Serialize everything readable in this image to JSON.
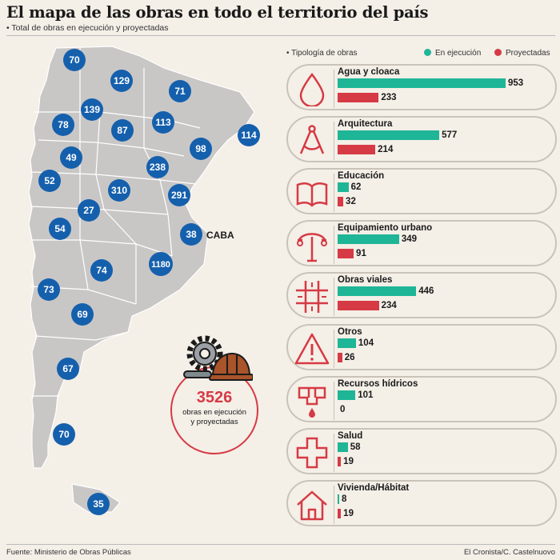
{
  "title": "El mapa de las obras en todo el territorio del país",
  "subtitle": "• Total de obras en ejecución y proyectadas",
  "colors": {
    "en_ejecucion": "#1fb597",
    "proyectadas": "#d63a44",
    "province_badge": "#1560ad",
    "land": "#c9c7c6"
  },
  "map": {
    "province_counts": [
      70,
      129,
      71,
      139,
      78,
      87,
      113,
      114,
      98,
      49,
      238,
      52,
      310,
      291,
      27,
      54,
      38,
      1180,
      74,
      73,
      69,
      67,
      70,
      35
    ],
    "caba_label": "CABA"
  },
  "total": {
    "value": "3526",
    "caption_line1": "obras en ejecución",
    "caption_line2": "y proyectadas",
    "icon": "gear-and-hardhat-icon"
  },
  "legend": {
    "title": "• Tipología de obras",
    "exec_label": "En ejecución",
    "proj_label": "Proyectadas"
  },
  "chart_data": {
    "type": "bar",
    "categories": [
      "Agua y cloaca",
      "Arquitectura",
      "Educación",
      "Equipamiento urbano",
      "Obras viales",
      "Otros",
      "Recursos hídricos",
      "Salud",
      "Vivienda/Hábitat"
    ],
    "series": [
      {
        "name": "En ejecución",
        "values": [
          953,
          577,
          62,
          349,
          446,
          104,
          101,
          58,
          8
        ]
      },
      {
        "name": "Proyectadas",
        "values": [
          233,
          214,
          32,
          91,
          234,
          26,
          0,
          19,
          19
        ]
      }
    ]
  },
  "category_icons": [
    "water-drop-icon",
    "compass-icon",
    "book-icon",
    "street-lamp-icon",
    "road-crossing-icon",
    "warning-icon",
    "water-tap-icon",
    "health-cross-icon",
    "house-icon"
  ],
  "footer": {
    "source": "Fuente: Ministerio de Obras Públicas",
    "credit": "El Cronista/C. Castelnuovo"
  }
}
